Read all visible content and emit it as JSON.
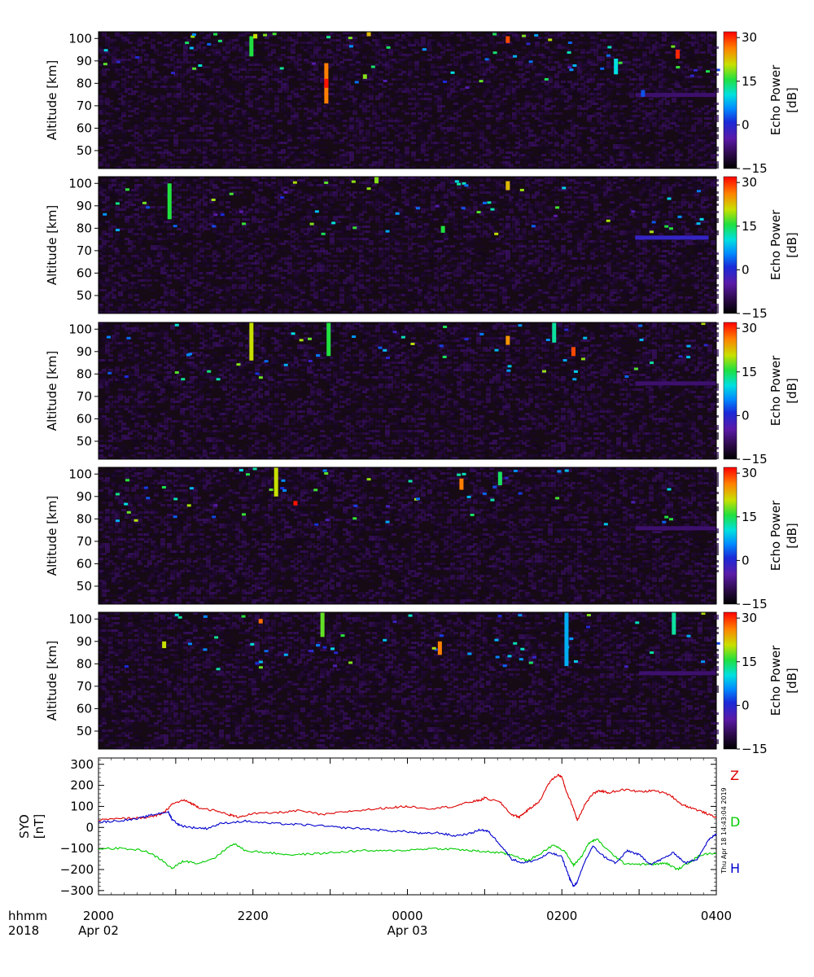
{
  "colors": {
    "background": "#ffffff",
    "panel_background": "#160a14",
    "colorscale": [
      "#000000",
      "#3a0a55",
      "#5a1aa8",
      "#1a2ad8",
      "#008cff",
      "#00e0e0",
      "#20e040",
      "#c8e000",
      "#ff8000",
      "#ff0000"
    ],
    "series_Z": "#dd0000",
    "series_D": "#00cc00",
    "series_H": "#0000cc"
  },
  "time_axis": {
    "row1_label": "hhmm",
    "row2_label": "2018",
    "ticks": [
      {
        "time": "2000",
        "date": "Apr 02"
      },
      {
        "time": "2200",
        "date": ""
      },
      {
        "time": "0000",
        "date": "Apr 03"
      },
      {
        "time": "0200",
        "date": ""
      },
      {
        "time": "0400",
        "date": ""
      }
    ]
  },
  "timestamp_note": "Thu Apr 18 14:43:04 2019",
  "chart_data": [
    {
      "type": "heatmap",
      "panel": 1,
      "ylabel": "Altitude [km]",
      "yticks": [
        50,
        60,
        70,
        80,
        90,
        100
      ],
      "ylim": [
        42,
        103
      ],
      "x_range_hours": [
        20,
        28
      ],
      "colorbar": {
        "label": "Echo Power",
        "units": "[dB]",
        "ticks": [
          "30",
          "15",
          "0",
          "−15"
        ],
        "range": [
          -15,
          32
        ]
      },
      "echoes": [
        {
          "t": 21.98,
          "alt_min": 92,
          "alt_max": 101,
          "db": 15
        },
        {
          "t": 22.95,
          "alt_min": 71,
          "alt_max": 89,
          "db": 25
        },
        {
          "t": 22.95,
          "alt_min": 78,
          "alt_max": 82,
          "db": 31
        },
        {
          "t": 23.45,
          "alt_min": 82,
          "alt_max": 84,
          "db": 18
        },
        {
          "t": 26.7,
          "alt_min": 84,
          "alt_max": 91,
          "db": 10
        },
        {
          "t": 27.05,
          "alt_min": 74,
          "alt_max": 77,
          "db": 2
        },
        {
          "t": 22.03,
          "alt_min": 100,
          "alt_max": 102,
          "db": 20
        },
        {
          "t": 23.5,
          "alt_min": 101,
          "alt_max": 103,
          "db": 22
        },
        {
          "t": 25.3,
          "alt_min": 98,
          "alt_max": 101,
          "db": 28
        },
        {
          "t": 27.5,
          "alt_min": 91,
          "alt_max": 95,
          "db": 30
        }
      ],
      "layer": {
        "t_start": 26.95,
        "t_end": 28,
        "alt": 75,
        "db": -8
      }
    },
    {
      "type": "heatmap",
      "panel": 2,
      "ylabel": "Altitude [km]",
      "yticks": [
        50,
        60,
        70,
        80,
        90,
        100
      ],
      "ylim": [
        42,
        103
      ],
      "x_range_hours": [
        20,
        28
      ],
      "colorbar": {
        "label": "Echo Power",
        "units": "[dB]",
        "ticks": [
          "30",
          "15",
          "0",
          "−15"
        ],
        "range": [
          -15,
          32
        ]
      },
      "echoes": [
        {
          "t": 20.92,
          "alt_min": 84,
          "alt_max": 100,
          "db": 15
        },
        {
          "t": 24.46,
          "alt_min": 78,
          "alt_max": 81,
          "db": 15
        },
        {
          "t": 25.3,
          "alt_min": 97,
          "alt_max": 101,
          "db": 22
        },
        {
          "t": 23.6,
          "alt_min": 100,
          "alt_max": 103,
          "db": 18
        }
      ],
      "layer": {
        "t_start": 26.95,
        "t_end": 27.9,
        "alt": 76,
        "db": -2
      }
    },
    {
      "type": "heatmap",
      "panel": 3,
      "ylabel": "Altitude [km]",
      "yticks": [
        50,
        60,
        70,
        80,
        90,
        100
      ],
      "ylim": [
        42,
        103
      ],
      "x_range_hours": [
        20,
        28
      ],
      "colorbar": {
        "label": "Echo Power",
        "units": "[dB]",
        "ticks": [
          "30",
          "15",
          "0",
          "−15"
        ],
        "range": [
          -15,
          32
        ]
      },
      "echoes": [
        {
          "t": 21.98,
          "alt_min": 86,
          "alt_max": 103,
          "db": 20
        },
        {
          "t": 22.98,
          "alt_min": 88,
          "alt_max": 103,
          "db": 15
        },
        {
          "t": 25.9,
          "alt_min": 94,
          "alt_max": 103,
          "db": 12
        },
        {
          "t": 26.15,
          "alt_min": 88,
          "alt_max": 92,
          "db": 28
        },
        {
          "t": 25.3,
          "alt_min": 93,
          "alt_max": 97,
          "db": 24
        }
      ],
      "layer": {
        "t_start": 26.95,
        "t_end": 28,
        "alt": 76,
        "db": -8
      }
    },
    {
      "type": "heatmap",
      "panel": 4,
      "ylabel": "Altitude [km]",
      "yticks": [
        50,
        60,
        70,
        80,
        90,
        100
      ],
      "ylim": [
        42,
        103
      ],
      "x_range_hours": [
        20,
        28
      ],
      "colorbar": {
        "label": "Echo Power",
        "units": "[dB]",
        "ticks": [
          "30",
          "15",
          "0",
          "−15"
        ],
        "range": [
          -15,
          32
        ]
      },
      "echoes": [
        {
          "t": 22.3,
          "alt_min": 90,
          "alt_max": 103,
          "db": 20
        },
        {
          "t": 22.55,
          "alt_min": 86,
          "alt_max": 88,
          "db": 31
        },
        {
          "t": 24.7,
          "alt_min": 93,
          "alt_max": 98,
          "db": 25
        },
        {
          "t": 25.2,
          "alt_min": 95,
          "alt_max": 101,
          "db": 14
        }
      ],
      "layer": {
        "t_start": 26.95,
        "t_end": 28,
        "alt": 76,
        "db": -8
      }
    },
    {
      "type": "heatmap",
      "panel": 5,
      "ylabel": "Altitude [km]",
      "yticks": [
        50,
        60,
        70,
        80,
        90,
        100
      ],
      "ylim": [
        42,
        103
      ],
      "x_range_hours": [
        20,
        28
      ],
      "colorbar": {
        "label": "Echo Power",
        "units": "[dB]",
        "ticks": [
          "30",
          "15",
          "0",
          "−15"
        ],
        "range": [
          -15,
          32
        ]
      },
      "echoes": [
        {
          "t": 20.85,
          "alt_min": 87,
          "alt_max": 90,
          "db": 20
        },
        {
          "t": 22.9,
          "alt_min": 92,
          "alt_max": 103,
          "db": 17
        },
        {
          "t": 24.42,
          "alt_min": 84,
          "alt_max": 90,
          "db": 25
        },
        {
          "t": 26.06,
          "alt_min": 79,
          "alt_max": 103,
          "db": 7
        },
        {
          "t": 27.45,
          "alt_min": 93,
          "alt_max": 103,
          "db": 12
        },
        {
          "t": 22.1,
          "alt_min": 98,
          "alt_max": 100,
          "db": 26
        }
      ],
      "layer": {
        "t_start": 27.0,
        "t_end": 28,
        "alt": 76,
        "db": -8
      }
    },
    {
      "type": "line",
      "ylabel_line1": "SYO",
      "ylabel_line2": "[nT]",
      "yticks": [
        -300,
        -200,
        -100,
        0,
        100,
        200,
        300
      ],
      "ylim": [
        -320,
        330
      ],
      "x_range_hours": [
        20,
        28
      ],
      "series": [
        {
          "name": "Z",
          "color": "#dd0000",
          "x": [
            20.0,
            20.3,
            20.5,
            20.7,
            20.85,
            20.95,
            21.1,
            21.2,
            21.3,
            21.5,
            21.7,
            21.8,
            22.0,
            22.3,
            22.6,
            22.9,
            23.2,
            23.5,
            23.8,
            24.0,
            24.3,
            24.6,
            24.8,
            24.95,
            25.0,
            25.2,
            25.35,
            25.45,
            25.55,
            25.7,
            25.85,
            25.95,
            26.0,
            26.05,
            26.15,
            26.2,
            26.3,
            26.4,
            26.5,
            26.6,
            26.8,
            27.0,
            27.2,
            27.4,
            27.55,
            27.7,
            27.85,
            28.0
          ],
          "y": [
            35,
            42,
            45,
            50,
            70,
            110,
            130,
            115,
            95,
            80,
            60,
            50,
            65,
            70,
            80,
            60,
            75,
            85,
            95,
            100,
            90,
            100,
            120,
            130,
            140,
            120,
            60,
            50,
            80,
            120,
            220,
            250,
            240,
            180,
            90,
            35,
            110,
            160,
            175,
            165,
            180,
            170,
            175,
            155,
            110,
            90,
            70,
            45
          ]
        },
        {
          "name": "D",
          "color": "#00cc00",
          "x": [
            20.0,
            20.3,
            20.6,
            20.8,
            20.95,
            21.1,
            21.3,
            21.5,
            21.75,
            21.9,
            22.2,
            22.5,
            22.8,
            23.1,
            23.4,
            23.7,
            24.0,
            24.3,
            24.6,
            24.8,
            25.0,
            25.2,
            25.4,
            25.55,
            25.7,
            25.9,
            26.05,
            26.15,
            26.25,
            26.35,
            26.45,
            26.6,
            26.8,
            27.0,
            27.2,
            27.35,
            27.5,
            27.65,
            27.8,
            28.0
          ],
          "y": [
            -100,
            -100,
            -110,
            -150,
            -195,
            -160,
            -170,
            -145,
            -75,
            -110,
            -120,
            -130,
            -125,
            -118,
            -110,
            -112,
            -108,
            -100,
            -103,
            -110,
            -115,
            -120,
            -135,
            -160,
            -130,
            -80,
            -120,
            -180,
            -140,
            -75,
            -55,
            -110,
            -170,
            -175,
            -175,
            -170,
            -200,
            -165,
            -130,
            -120
          ]
        },
        {
          "name": "H",
          "color": "#0000cc",
          "x": [
            20.0,
            20.2,
            20.5,
            20.7,
            20.9,
            20.95,
            21.05,
            21.2,
            21.4,
            21.6,
            21.9,
            22.2,
            22.5,
            22.8,
            23.1,
            23.4,
            23.7,
            24.0,
            24.2,
            24.4,
            24.6,
            24.8,
            24.95,
            25.05,
            25.2,
            25.35,
            25.5,
            25.7,
            25.85,
            26.0,
            26.1,
            26.15,
            26.2,
            26.3,
            26.4,
            26.55,
            26.7,
            26.85,
            27.0,
            27.15,
            27.3,
            27.45,
            27.6,
            27.75,
            27.9,
            28.0
          ],
          "y": [
            25,
            30,
            40,
            60,
            75,
            40,
            10,
            0,
            -5,
            20,
            30,
            20,
            15,
            10,
            0,
            -5,
            -15,
            -20,
            -30,
            -25,
            -40,
            -30,
            -10,
            -20,
            -80,
            -150,
            -170,
            -150,
            -120,
            -140,
            -240,
            -280,
            -260,
            -160,
            -90,
            -140,
            -170,
            -110,
            -130,
            -175,
            -150,
            -120,
            -170,
            -150,
            -60,
            -30
          ]
        }
      ]
    }
  ]
}
